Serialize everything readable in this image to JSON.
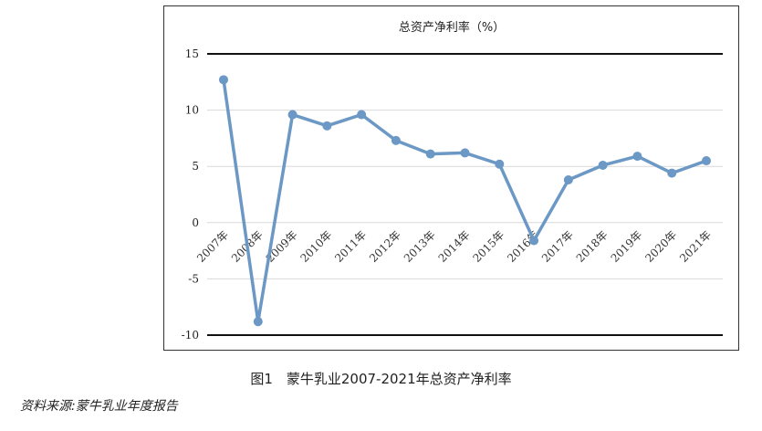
{
  "caption": "图1　蒙牛乳业2007-2021年总资产净利率",
  "source": "资料来源:蒙牛乳业年度报告",
  "chart_data": {
    "type": "line",
    "title": "总资产净利率（%）",
    "categories": [
      "2007年",
      "2008年",
      "2009年",
      "2010年",
      "2011年",
      "2012年",
      "2013年",
      "2014年",
      "2015年",
      "2016年",
      "2017年",
      "2018年",
      "2019年",
      "2020年",
      "2021年"
    ],
    "values": [
      12.7,
      -8.8,
      9.6,
      8.6,
      9.6,
      7.3,
      6.1,
      6.2,
      5.2,
      -1.6,
      3.8,
      5.1,
      5.9,
      4.4,
      5.5
    ],
    "yticks": [
      15,
      10,
      5,
      0,
      -5,
      -10
    ],
    "ylim": [
      -10,
      15
    ],
    "line_color": "#6b98c4",
    "grid": true
  }
}
